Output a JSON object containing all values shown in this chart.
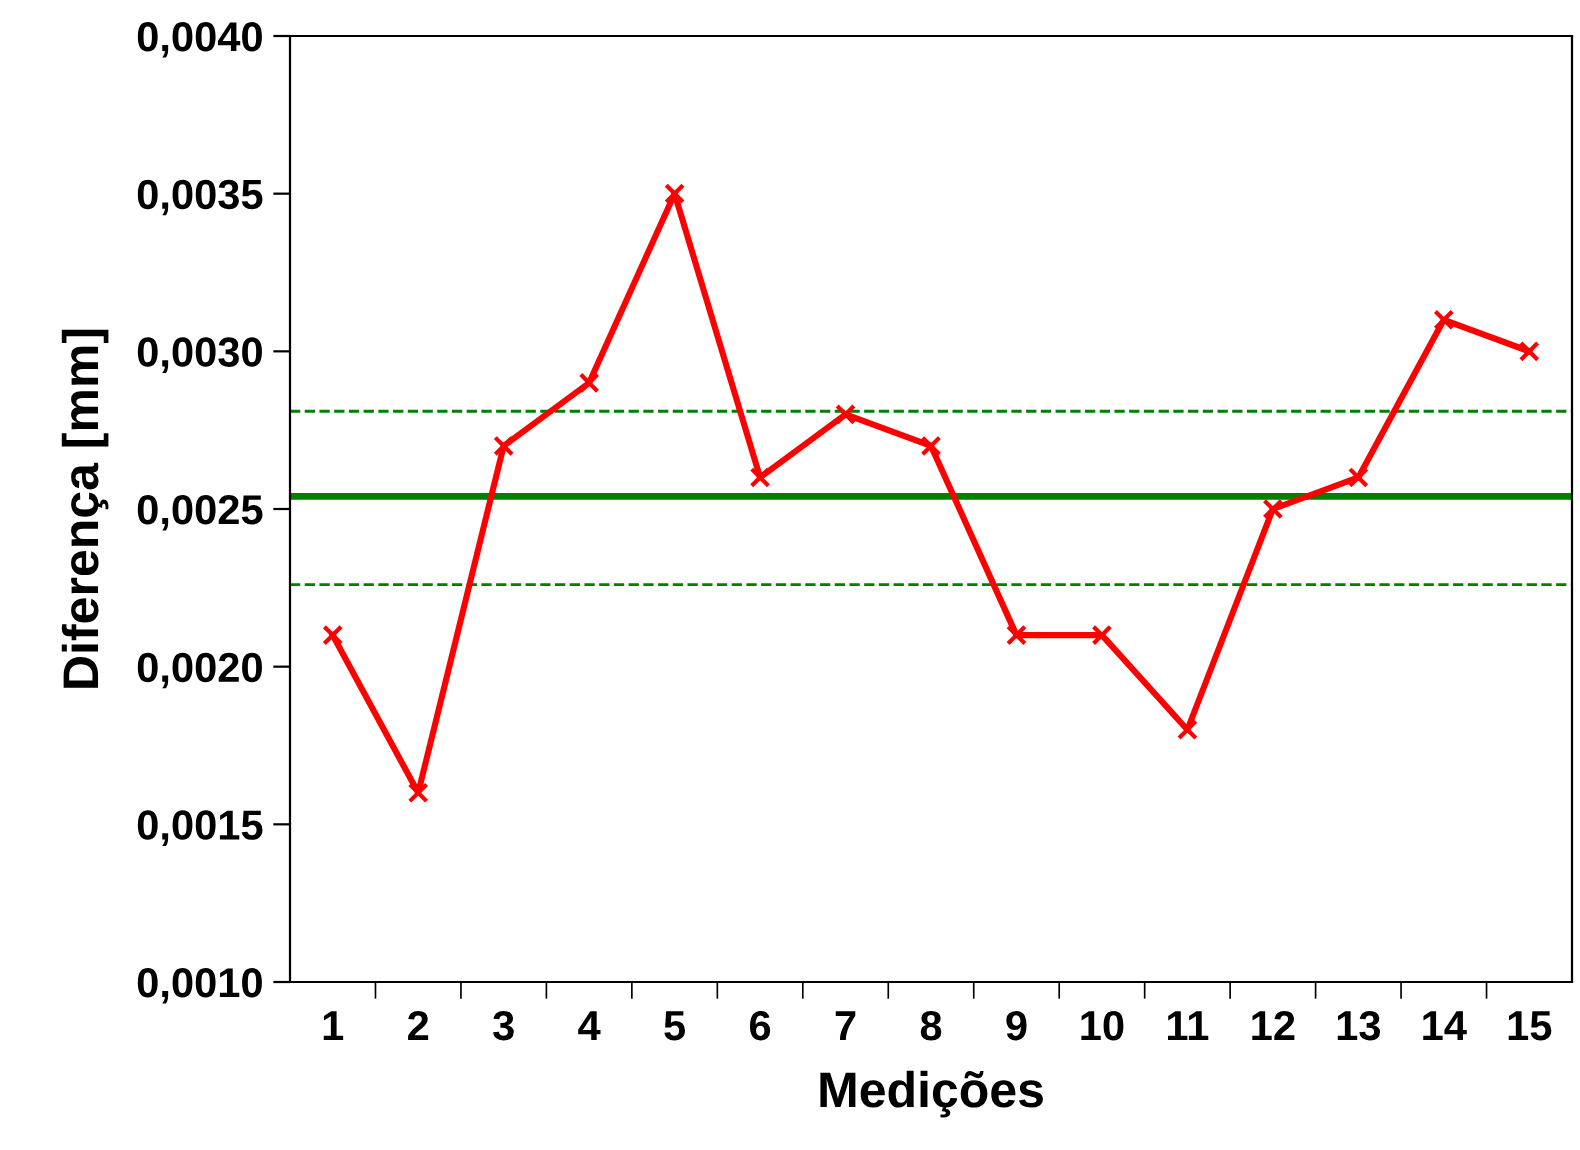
{
  "chart_data": {
    "type": "line",
    "xlabel": "Medições",
    "ylabel": "Diferença [mm]",
    "categories": [
      "1",
      "2",
      "3",
      "4",
      "5",
      "6",
      "7",
      "8",
      "9",
      "10",
      "11",
      "12",
      "13",
      "14",
      "15"
    ],
    "series": [
      {
        "color": "#ff0000",
        "values": [
          0.0021,
          0.0016,
          0.0027,
          0.0029,
          0.0035,
          0.0026,
          0.0028,
          0.0027,
          0.0021,
          0.0021,
          0.0018,
          0.0025,
          0.0026,
          0.0031,
          0.003
        ]
      }
    ],
    "marker": "cross",
    "line_style": "solid",
    "grid": false,
    "legend": false,
    "ylim": [
      0.001,
      0.004
    ],
    "yticks": [
      {
        "value": 0.001,
        "label": "0,0010"
      },
      {
        "value": 0.0015,
        "label": "0,0015"
      },
      {
        "value": 0.002,
        "label": "0,0020"
      },
      {
        "value": 0.0025,
        "label": "0,0025"
      },
      {
        "value": 0.003,
        "label": "0,0030"
      },
      {
        "value": 0.0035,
        "label": "0,0035"
      },
      {
        "value": 0.004,
        "label": "0,0040"
      }
    ],
    "ref_lines": [
      {
        "axis": "y",
        "value": 0.00254,
        "color": "#008000",
        "line_style": "solid"
      },
      {
        "axis": "y",
        "value": 0.00281,
        "color": "#008000",
        "line_style": "dashed"
      },
      {
        "axis": "y",
        "value": 0.00226,
        "color": "#008000",
        "line_style": "dashed"
      }
    ]
  }
}
